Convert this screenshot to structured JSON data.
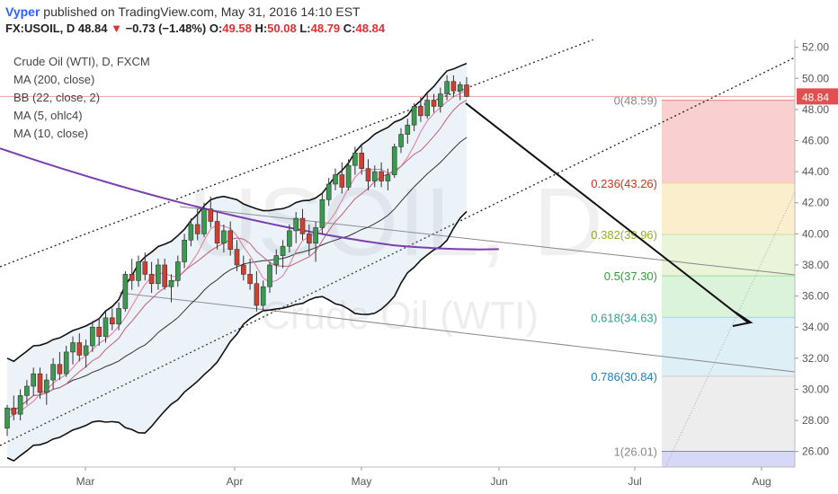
{
  "header": {
    "author": "Vyper",
    "published_text": "published on TradingView.com, May 31, 2016 14:10 EST",
    "symbol": "FX:USOIL, D",
    "last": "48.84",
    "change_arrow": "▼",
    "change": "−0.73 (−1.48%)",
    "o_label": "O:",
    "o_value": "49.58",
    "h_label": "H:",
    "h_value": "50.08",
    "l_label": "L:",
    "l_value": "48.79",
    "c_label": "C:",
    "c_value": "48.84"
  },
  "legend": [
    "Crude Oil (WTI), D, FXCM",
    "MA (200, close)",
    "BB (22, close, 2)",
    "MA (5, ohlc4)",
    "MA (10, close)"
  ],
  "watermark": {
    "symbol": "USOIL, D",
    "name": "Crude Oil (WTI)"
  },
  "colors": {
    "up_candle": "#3a9a50",
    "down_candle": "#d04030",
    "ma200": "#7b3fb0",
    "ma_fast": "#e07a9a",
    "bollinger": "#111111",
    "price_tag": "#e05050",
    "fib_0": "#f08080",
    "fib_236": "#f4d27a",
    "fib_382": "#c6e29a",
    "fib_5": "#a0dca0",
    "fib_618": "#a8d4e8",
    "fib_786": "#d0d0d0",
    "fib_1": "#b0b0f0"
  },
  "chart_data": {
    "type": "candlestick",
    "symbol": "FX:USOIL, D",
    "ylim": [
      25,
      52.5
    ],
    "y_ticks": [
      "52.00",
      "50.00",
      "48.00",
      "46.00",
      "44.00",
      "42.00",
      "40.00",
      "38.00",
      "36.00",
      "34.00",
      "32.00",
      "30.00",
      "28.00",
      "26.00"
    ],
    "x_ticks": [
      "Mar",
      "Apr",
      "May",
      "Jun",
      "Jul",
      "Aug"
    ],
    "last_price": "48.84",
    "candles": [
      {
        "o": 27.5,
        "h": 29.0,
        "l": 27.0,
        "c": 28.8
      },
      {
        "o": 28.8,
        "h": 29.6,
        "l": 28.0,
        "c": 28.4
      },
      {
        "o": 28.4,
        "h": 30.0,
        "l": 28.0,
        "c": 29.6
      },
      {
        "o": 29.6,
        "h": 30.6,
        "l": 29.0,
        "c": 30.2
      },
      {
        "o": 30.2,
        "h": 31.4,
        "l": 29.6,
        "c": 31.0
      },
      {
        "o": 31.0,
        "h": 31.4,
        "l": 29.4,
        "c": 29.8
      },
      {
        "o": 29.8,
        "h": 31.0,
        "l": 29.0,
        "c": 30.6
      },
      {
        "o": 30.6,
        "h": 32.0,
        "l": 30.0,
        "c": 31.6
      },
      {
        "o": 31.6,
        "h": 32.4,
        "l": 30.6,
        "c": 31.0
      },
      {
        "o": 31.0,
        "h": 32.8,
        "l": 30.8,
        "c": 32.4
      },
      {
        "o": 32.4,
        "h": 33.4,
        "l": 31.6,
        "c": 33.0
      },
      {
        "o": 33.0,
        "h": 33.6,
        "l": 31.8,
        "c": 32.2
      },
      {
        "o": 32.2,
        "h": 33.2,
        "l": 31.4,
        "c": 32.8
      },
      {
        "o": 32.8,
        "h": 34.4,
        "l": 32.4,
        "c": 34.0
      },
      {
        "o": 34.0,
        "h": 34.6,
        "l": 32.8,
        "c": 33.4
      },
      {
        "o": 33.4,
        "h": 35.0,
        "l": 33.0,
        "c": 34.6
      },
      {
        "o": 34.6,
        "h": 35.2,
        "l": 33.8,
        "c": 34.2
      },
      {
        "o": 34.2,
        "h": 35.6,
        "l": 33.8,
        "c": 35.2
      },
      {
        "o": 35.2,
        "h": 37.6,
        "l": 35.0,
        "c": 37.4
      },
      {
        "o": 37.4,
        "h": 38.4,
        "l": 36.4,
        "c": 37.0
      },
      {
        "o": 37.0,
        "h": 38.6,
        "l": 36.6,
        "c": 38.2
      },
      {
        "o": 38.2,
        "h": 38.8,
        "l": 37.0,
        "c": 37.4
      },
      {
        "o": 37.4,
        "h": 38.2,
        "l": 36.2,
        "c": 36.8
      },
      {
        "o": 36.8,
        "h": 38.4,
        "l": 36.4,
        "c": 38.0
      },
      {
        "o": 38.0,
        "h": 38.4,
        "l": 36.4,
        "c": 36.6
      },
      {
        "o": 36.6,
        "h": 37.4,
        "l": 35.6,
        "c": 37.0
      },
      {
        "o": 37.0,
        "h": 38.6,
        "l": 36.6,
        "c": 38.2
      },
      {
        "o": 38.2,
        "h": 40.0,
        "l": 37.8,
        "c": 39.6
      },
      {
        "o": 39.6,
        "h": 41.0,
        "l": 39.2,
        "c": 40.6
      },
      {
        "o": 40.6,
        "h": 41.6,
        "l": 39.6,
        "c": 40.0
      },
      {
        "o": 40.0,
        "h": 42.0,
        "l": 39.8,
        "c": 41.6
      },
      {
        "o": 41.6,
        "h": 42.4,
        "l": 40.4,
        "c": 40.8
      },
      {
        "o": 40.8,
        "h": 41.4,
        "l": 39.0,
        "c": 39.4
      },
      {
        "o": 39.4,
        "h": 40.6,
        "l": 38.8,
        "c": 40.2
      },
      {
        "o": 40.2,
        "h": 40.8,
        "l": 38.6,
        "c": 39.0
      },
      {
        "o": 39.0,
        "h": 39.6,
        "l": 37.6,
        "c": 38.0
      },
      {
        "o": 38.0,
        "h": 38.6,
        "l": 37.0,
        "c": 37.4
      },
      {
        "o": 37.4,
        "h": 38.4,
        "l": 36.4,
        "c": 36.8
      },
      {
        "o": 36.8,
        "h": 37.6,
        "l": 35.0,
        "c": 35.4
      },
      {
        "o": 35.4,
        "h": 37.0,
        "l": 35.0,
        "c": 36.6
      },
      {
        "o": 36.6,
        "h": 38.2,
        "l": 36.2,
        "c": 38.0
      },
      {
        "o": 38.0,
        "h": 39.0,
        "l": 37.4,
        "c": 38.6
      },
      {
        "o": 38.6,
        "h": 39.6,
        "l": 37.8,
        "c": 39.2
      },
      {
        "o": 39.2,
        "h": 40.6,
        "l": 38.8,
        "c": 40.2
      },
      {
        "o": 40.2,
        "h": 41.4,
        "l": 39.4,
        "c": 41.0
      },
      {
        "o": 41.0,
        "h": 41.6,
        "l": 39.6,
        "c": 40.0
      },
      {
        "o": 40.0,
        "h": 40.6,
        "l": 38.6,
        "c": 39.4
      },
      {
        "o": 39.4,
        "h": 40.8,
        "l": 38.2,
        "c": 40.4
      },
      {
        "o": 40.4,
        "h": 42.6,
        "l": 40.0,
        "c": 42.2
      },
      {
        "o": 42.2,
        "h": 43.6,
        "l": 41.8,
        "c": 43.2
      },
      {
        "o": 43.2,
        "h": 44.2,
        "l": 42.8,
        "c": 43.8
      },
      {
        "o": 43.8,
        "h": 44.6,
        "l": 42.6,
        "c": 43.0
      },
      {
        "o": 43.0,
        "h": 44.8,
        "l": 42.8,
        "c": 44.4
      },
      {
        "o": 44.4,
        "h": 45.6,
        "l": 43.8,
        "c": 45.2
      },
      {
        "o": 45.2,
        "h": 45.8,
        "l": 43.8,
        "c": 44.2
      },
      {
        "o": 44.2,
        "h": 44.8,
        "l": 42.8,
        "c": 43.4
      },
      {
        "o": 43.4,
        "h": 44.4,
        "l": 43.0,
        "c": 44.0
      },
      {
        "o": 44.0,
        "h": 44.6,
        "l": 43.0,
        "c": 43.4
      },
      {
        "o": 43.4,
        "h": 44.2,
        "l": 42.8,
        "c": 43.8
      },
      {
        "o": 43.8,
        "h": 45.8,
        "l": 43.6,
        "c": 45.6
      },
      {
        "o": 45.6,
        "h": 46.8,
        "l": 45.2,
        "c": 46.4
      },
      {
        "o": 46.4,
        "h": 47.4,
        "l": 45.8,
        "c": 47.0
      },
      {
        "o": 47.0,
        "h": 48.4,
        "l": 46.6,
        "c": 48.2
      },
      {
        "o": 48.2,
        "h": 48.8,
        "l": 47.2,
        "c": 47.6
      },
      {
        "o": 47.6,
        "h": 49.0,
        "l": 47.4,
        "c": 48.6
      },
      {
        "o": 48.6,
        "h": 49.0,
        "l": 47.8,
        "c": 48.2
      },
      {
        "o": 48.2,
        "h": 49.4,
        "l": 47.8,
        "c": 49.0
      },
      {
        "o": 49.0,
        "h": 50.2,
        "l": 48.6,
        "c": 49.8
      },
      {
        "o": 49.8,
        "h": 50.2,
        "l": 48.8,
        "c": 49.2
      },
      {
        "o": 49.2,
        "h": 49.8,
        "l": 48.6,
        "c": 49.6
      },
      {
        "o": 49.58,
        "h": 50.08,
        "l": 48.79,
        "c": 48.84
      }
    ],
    "fibonacci": [
      {
        "ratio": "0",
        "price": "48.59",
        "label": "0(48.59)"
      },
      {
        "ratio": "0.236",
        "price": "43.26",
        "label": "0.236(43.26)"
      },
      {
        "ratio": "0.382",
        "price": "39.96",
        "label": "0.382(39.96)"
      },
      {
        "ratio": "0.5",
        "price": "37.30",
        "label": "0.5(37.30)"
      },
      {
        "ratio": "0.618",
        "price": "34.63",
        "label": "0.618(34.63)"
      },
      {
        "ratio": "0.786",
        "price": "30.84",
        "label": "0.786(30.84)"
      },
      {
        "ratio": "1",
        "price": "26.01",
        "label": "1(26.01)"
      }
    ]
  }
}
